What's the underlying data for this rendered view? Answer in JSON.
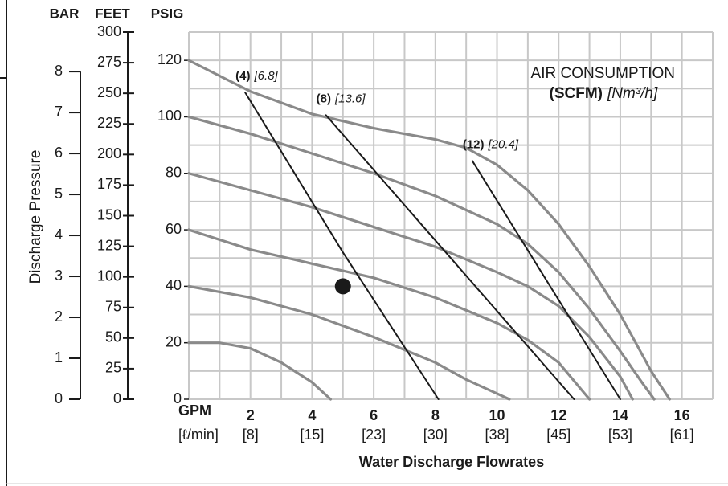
{
  "chart_data": {
    "type": "line",
    "y_axis_label": "Discharge Pressure",
    "x_axis_label": "Water Discharge Flowrates",
    "y_unit_psig": "PSIG",
    "y_unit_feet": "FEET",
    "y_unit_bar": "BAR",
    "x_unit_gpm": "GPM",
    "x_unit_lpm": "[ℓ/min]",
    "annotation_title": "AIR CONSUMPTION",
    "annotation_unit": "(SCFM)",
    "annotation_unit_metric": "[Nm³/h]",
    "xlim": [
      0,
      17
    ],
    "ylim": [
      0,
      130
    ],
    "y2lim": [
      0,
      300
    ],
    "y3lim": [
      0,
      8.963
    ],
    "xticks": [
      2,
      4,
      6,
      8,
      10,
      12,
      14,
      16
    ],
    "xticks_metric": [
      {
        "value": 2,
        "label": "[8]"
      },
      {
        "value": 4,
        "label": "[15]"
      },
      {
        "value": 6,
        "label": "[23]"
      },
      {
        "value": 8,
        "label": "[30]"
      },
      {
        "value": 10,
        "label": "[38]"
      },
      {
        "value": 12,
        "label": "[45]"
      },
      {
        "value": 14,
        "label": "[53]"
      },
      {
        "value": 16,
        "label": "[61]"
      }
    ],
    "yticks": [
      0,
      20,
      40,
      60,
      80,
      100,
      120
    ],
    "y2ticks": [
      0,
      25,
      50,
      75,
      100,
      125,
      150,
      175,
      200,
      225,
      250,
      275,
      300
    ],
    "y3ticks": [
      0,
      1,
      2,
      3,
      4,
      5,
      6,
      7,
      8
    ],
    "xgrid": [
      0,
      1,
      2,
      3,
      4,
      5,
      6,
      7,
      8,
      9,
      10,
      11,
      12,
      13,
      14,
      15,
      16,
      17
    ],
    "ygrid": [
      0,
      10,
      20,
      30,
      40,
      50,
      60,
      70,
      80,
      90,
      100,
      110,
      120,
      130
    ],
    "grid_color": "#c8c8c8",
    "series": [
      {
        "color": "#8a8a8a",
        "x": [
          0,
          2,
          4,
          6,
          8,
          9,
          10,
          11,
          12,
          13,
          14,
          15,
          15.6
        ],
        "values": [
          120,
          109,
          101,
          96,
          92,
          89,
          83,
          74,
          62,
          47,
          30,
          10,
          0
        ]
      },
      {
        "color": "#8a8a8a",
        "x": [
          0,
          2,
          4,
          6,
          8,
          10,
          11,
          12,
          13,
          14,
          14.7,
          15.1
        ],
        "values": [
          100,
          94,
          87,
          80,
          72,
          62,
          55,
          45,
          32,
          17,
          6,
          0
        ]
      },
      {
        "color": "#8a8a8a",
        "x": [
          0,
          2,
          4,
          6,
          8,
          10,
          11,
          12,
          13,
          14,
          14.4
        ],
        "values": [
          80,
          74,
          68,
          61,
          54,
          45,
          40,
          33,
          22,
          8,
          0
        ]
      },
      {
        "color": "#8a8a8a",
        "x": [
          0,
          2,
          4,
          6,
          8,
          10,
          11,
          12,
          13
        ],
        "values": [
          60,
          53,
          48,
          43,
          36,
          27,
          21,
          13,
          0
        ]
      },
      {
        "color": "#8a8a8a",
        "x": [
          0,
          2,
          4,
          6,
          8,
          9,
          10,
          10.4
        ],
        "values": [
          40,
          36,
          30,
          22,
          13,
          7,
          2,
          0
        ]
      },
      {
        "color": "#8a8a8a",
        "x": [
          0,
          1,
          2,
          3,
          4,
          4.6
        ],
        "values": [
          20,
          20,
          18,
          13,
          6,
          0
        ]
      },
      {
        "name": "(4)",
        "label": "[6.8]",
        "color": "#1a1a1a",
        "x": [
          1.83,
          5,
          8.1
        ],
        "values": [
          108.6,
          52,
          0
        ]
      },
      {
        "name": "(8)",
        "label": "[13.6]",
        "color": "#1a1a1a",
        "x": [
          4.45,
          12.5
        ],
        "values": [
          100.6,
          0
        ]
      },
      {
        "name": "(12)",
        "label": "[20.4]",
        "color": "#1a1a1a",
        "x": [
          9.2,
          14.0
        ],
        "values": [
          84.4,
          0
        ]
      }
    ],
    "points": [
      {
        "x": 5,
        "y": 40,
        "color": "#1a1a1a"
      }
    ]
  }
}
